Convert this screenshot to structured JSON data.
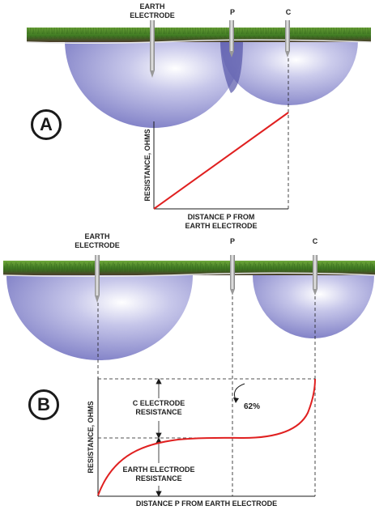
{
  "panel_a": {
    "badge": "A",
    "earth_electrode_label_1": "EARTH",
    "earth_electrode_label_2": "ELECTRODE",
    "p_label": "P",
    "c_label": "C",
    "y_axis_label": "RESISTANCE, OHMS",
    "x_axis_label_1": "DISTANCE P FROM",
    "x_axis_label_2": "EARTH ELECTRODE"
  },
  "panel_b": {
    "badge": "B",
    "earth_electrode_label_1": "EARTH",
    "earth_electrode_label_2": "ELECTRODE",
    "p_label": "P",
    "c_label": "C",
    "y_axis_label": "RESISTANCE, OHMS",
    "x_axis_label": "DISTANCE P FROM EARTH ELECTRODE",
    "c_resistance_label_1": "C ELECTRODE",
    "c_resistance_label_2": "RESISTANCE",
    "earth_resistance_label_1": "EARTH ELECTRODE",
    "earth_resistance_label_2": "RESISTANCE",
    "percent_label": "62%"
  },
  "colors": {
    "sphere": "#8f8fd0",
    "sphere_highlight": "#ffffff",
    "grass": "#4f8a2a",
    "soil": "#5a4630",
    "curve": "#e02020",
    "axis": "#1a1a1a"
  }
}
